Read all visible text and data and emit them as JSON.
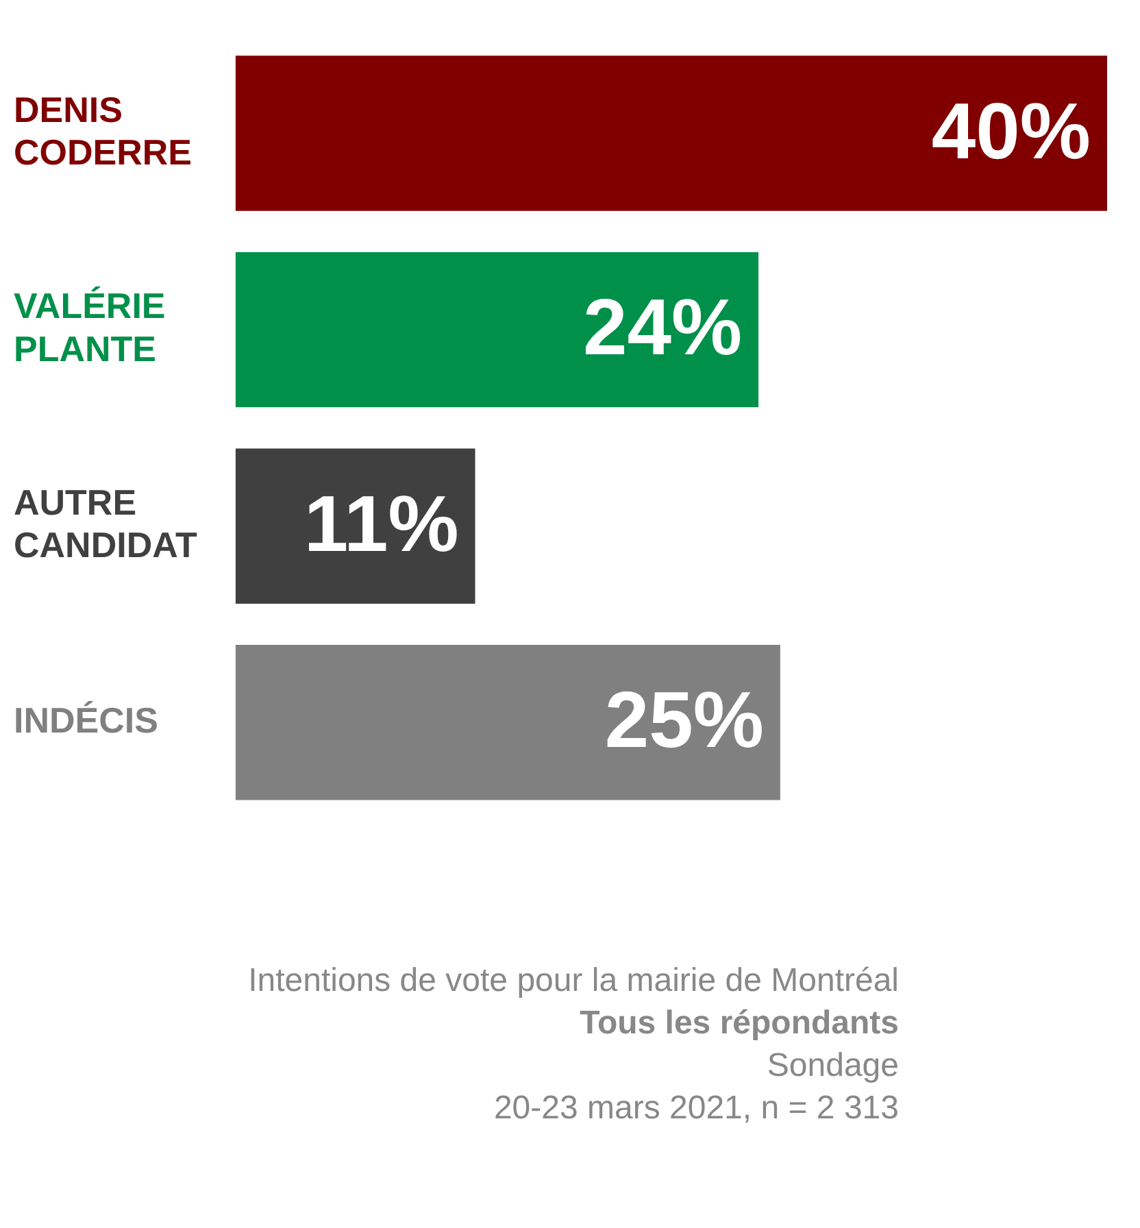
{
  "chart_data": {
    "type": "bar",
    "orientation": "horizontal",
    "categories": [
      "DENIS CODERRE",
      "VALÉRIE PLANTE",
      "AUTRE CANDIDAT",
      "INDÉCIS"
    ],
    "values": [
      40,
      24,
      11,
      25
    ],
    "colors": [
      "#800000",
      "#00904a",
      "#404040",
      "#808080"
    ],
    "xlim": [
      0,
      40
    ],
    "tick_labels": "y",
    "legend": false,
    "data_labels": true,
    "value_labels": [
      "40%",
      "24%",
      "11%",
      "25%"
    ],
    "annotations": [
      "Intentions de vote pour la mairie de Montréal",
      "Tous les répondants",
      "Sondage",
      "20-23 mars 2021, n = 2 313"
    ]
  }
}
